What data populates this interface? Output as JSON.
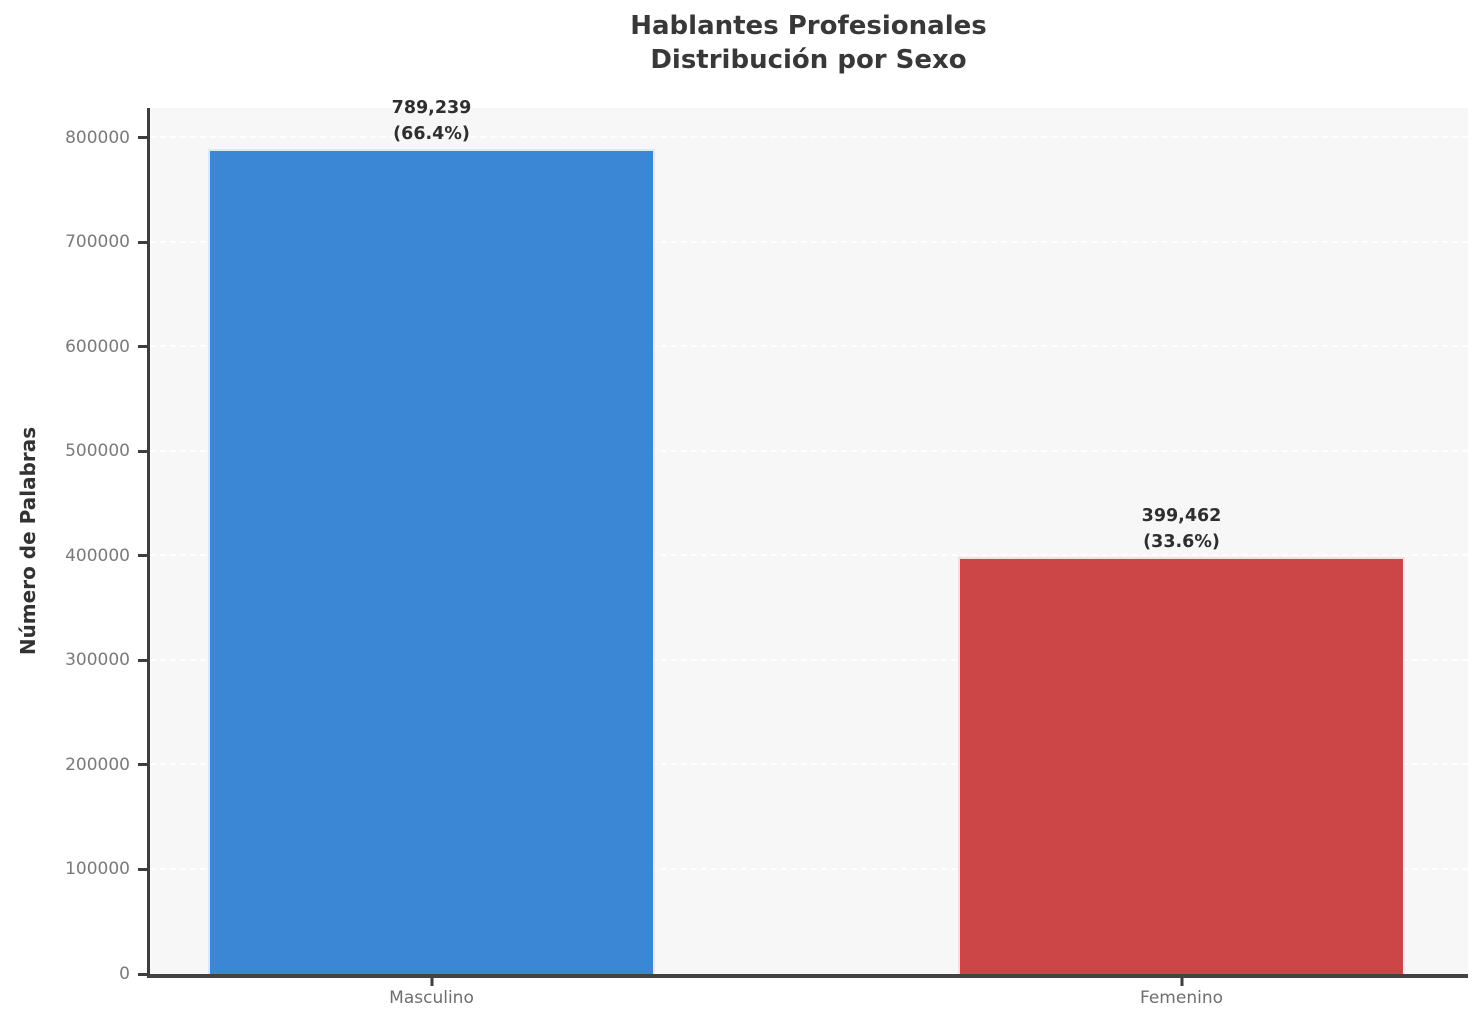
{
  "title": "Hablantes Profesionales",
  "subtitle": "Distribución por Sexo",
  "chart_data": {
    "type": "bar",
    "title": "Hablantes Profesionales",
    "subtitle": "Distribución por Sexo",
    "categories": [
      "Masculino",
      "Femenino"
    ],
    "values": [
      789239,
      399462
    ],
    "percentages": [
      66.4,
      33.6
    ],
    "bar_labels": [
      [
        "789,239",
        "(66.4%)"
      ],
      [
        "399,462",
        "(33.6%)"
      ]
    ],
    "bar_colors": [
      "#3b87d5",
      "#cc4648"
    ],
    "xlabel": "",
    "ylabel": "Número de Palabras",
    "ylim": [
      0,
      828701
    ],
    "yticks": [
      0,
      100000,
      200000,
      300000,
      400000,
      500000,
      600000,
      700000,
      800000
    ],
    "grid": "horizontal, dashed, white, on light-gray plot background",
    "legend": "none"
  },
  "colors": {
    "plot_background": "#f7f7f7",
    "figure_background": "#ffffff",
    "spine": "#3e3e3e",
    "title_text": "#383838",
    "tick_label_text": "#7a7a7a",
    "bar_blue": "#3b87d5",
    "bar_red": "#cc4648"
  }
}
